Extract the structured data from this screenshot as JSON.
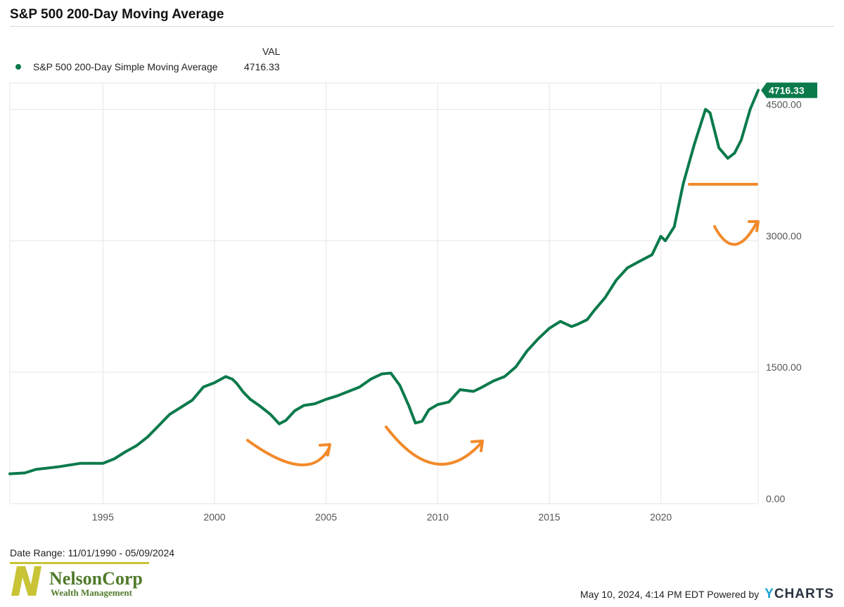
{
  "title": "S&P 500 200-Day Moving Average",
  "legend": {
    "header": "VAL",
    "series_name": "S&P 500 200-Day Simple Moving Average",
    "series_value": "4716.33"
  },
  "last_value_tag": "4716.33",
  "footer": {
    "date_range": "Date Range: 11/01/1990 - 05/09/2024",
    "timestamp": "May 10, 2024, 4:14 PM EDT Powered by",
    "brand_y": "Y",
    "brand_rest": "CHARTS"
  },
  "logo": {
    "name": "NelsonCorp",
    "sub": "Wealth Management"
  },
  "colors": {
    "line": "#0b7a4b",
    "annotation": "#f28a2a",
    "grid": "#e6e6e6",
    "logo_green": "#4f7a2a",
    "logo_yellow": "#c8c436"
  },
  "chart_data": {
    "type": "line",
    "x_range": [
      1990.83,
      2024.36
    ],
    "ylim": [
      0,
      4800
    ],
    "y_ticks": [
      0,
      1500,
      3000,
      4500
    ],
    "y_tick_labels": [
      "0.00",
      "1500.00",
      "3000.00",
      "4500.00"
    ],
    "x_ticks": [
      1995,
      2000,
      2005,
      2010,
      2015,
      2020
    ],
    "x_tick_labels": [
      "1995",
      "2000",
      "2005",
      "2010",
      "2015",
      "2020"
    ],
    "series": [
      {
        "name": "S&P 500 200-Day Simple Moving Average",
        "x": [
          1990.83,
          1991.5,
          1992,
          1993,
          1994,
          1995,
          1995.5,
          1996,
          1996.5,
          1997,
          1997.5,
          1998,
          1998.5,
          1999,
          1999.5,
          2000,
          2000.5,
          2000.8,
          2001,
          2001.3,
          2001.6,
          2002,
          2002.5,
          2002.9,
          2003.2,
          2003.6,
          2004,
          2004.5,
          2005,
          2005.5,
          2006,
          2006.5,
          2007,
          2007.5,
          2007.9,
          2008.3,
          2008.7,
          2009,
          2009.3,
          2009.6,
          2010,
          2010.5,
          2011,
          2011.6,
          2012,
          2012.5,
          2013,
          2013.5,
          2014,
          2014.5,
          2015,
          2015.5,
          2016,
          2016.3,
          2016.7,
          2017,
          2017.5,
          2018,
          2018.5,
          2019,
          2019.6,
          2020,
          2020.2,
          2020.6,
          2021,
          2021.5,
          2022,
          2022.2,
          2022.6,
          2023,
          2023.3,
          2023.6,
          2024,
          2024.36
        ],
        "y": [
          340,
          350,
          390,
          420,
          460,
          460,
          510,
          590,
          660,
          760,
          890,
          1020,
          1100,
          1180,
          1330,
          1380,
          1450,
          1420,
          1370,
          1270,
          1190,
          1120,
          1020,
          910,
          950,
          1060,
          1120,
          1140,
          1190,
          1230,
          1280,
          1330,
          1420,
          1480,
          1490,
          1350,
          1120,
          920,
          940,
          1070,
          1130,
          1160,
          1300,
          1280,
          1330,
          1400,
          1450,
          1560,
          1740,
          1880,
          2000,
          2080,
          2020,
          2050,
          2100,
          2200,
          2350,
          2550,
          2690,
          2760,
          2840,
          3050,
          3000,
          3160,
          3650,
          4100,
          4500,
          4460,
          4060,
          3940,
          4000,
          4150,
          4500,
          4716.33
        ]
      }
    ],
    "last_value": 4716.33
  }
}
